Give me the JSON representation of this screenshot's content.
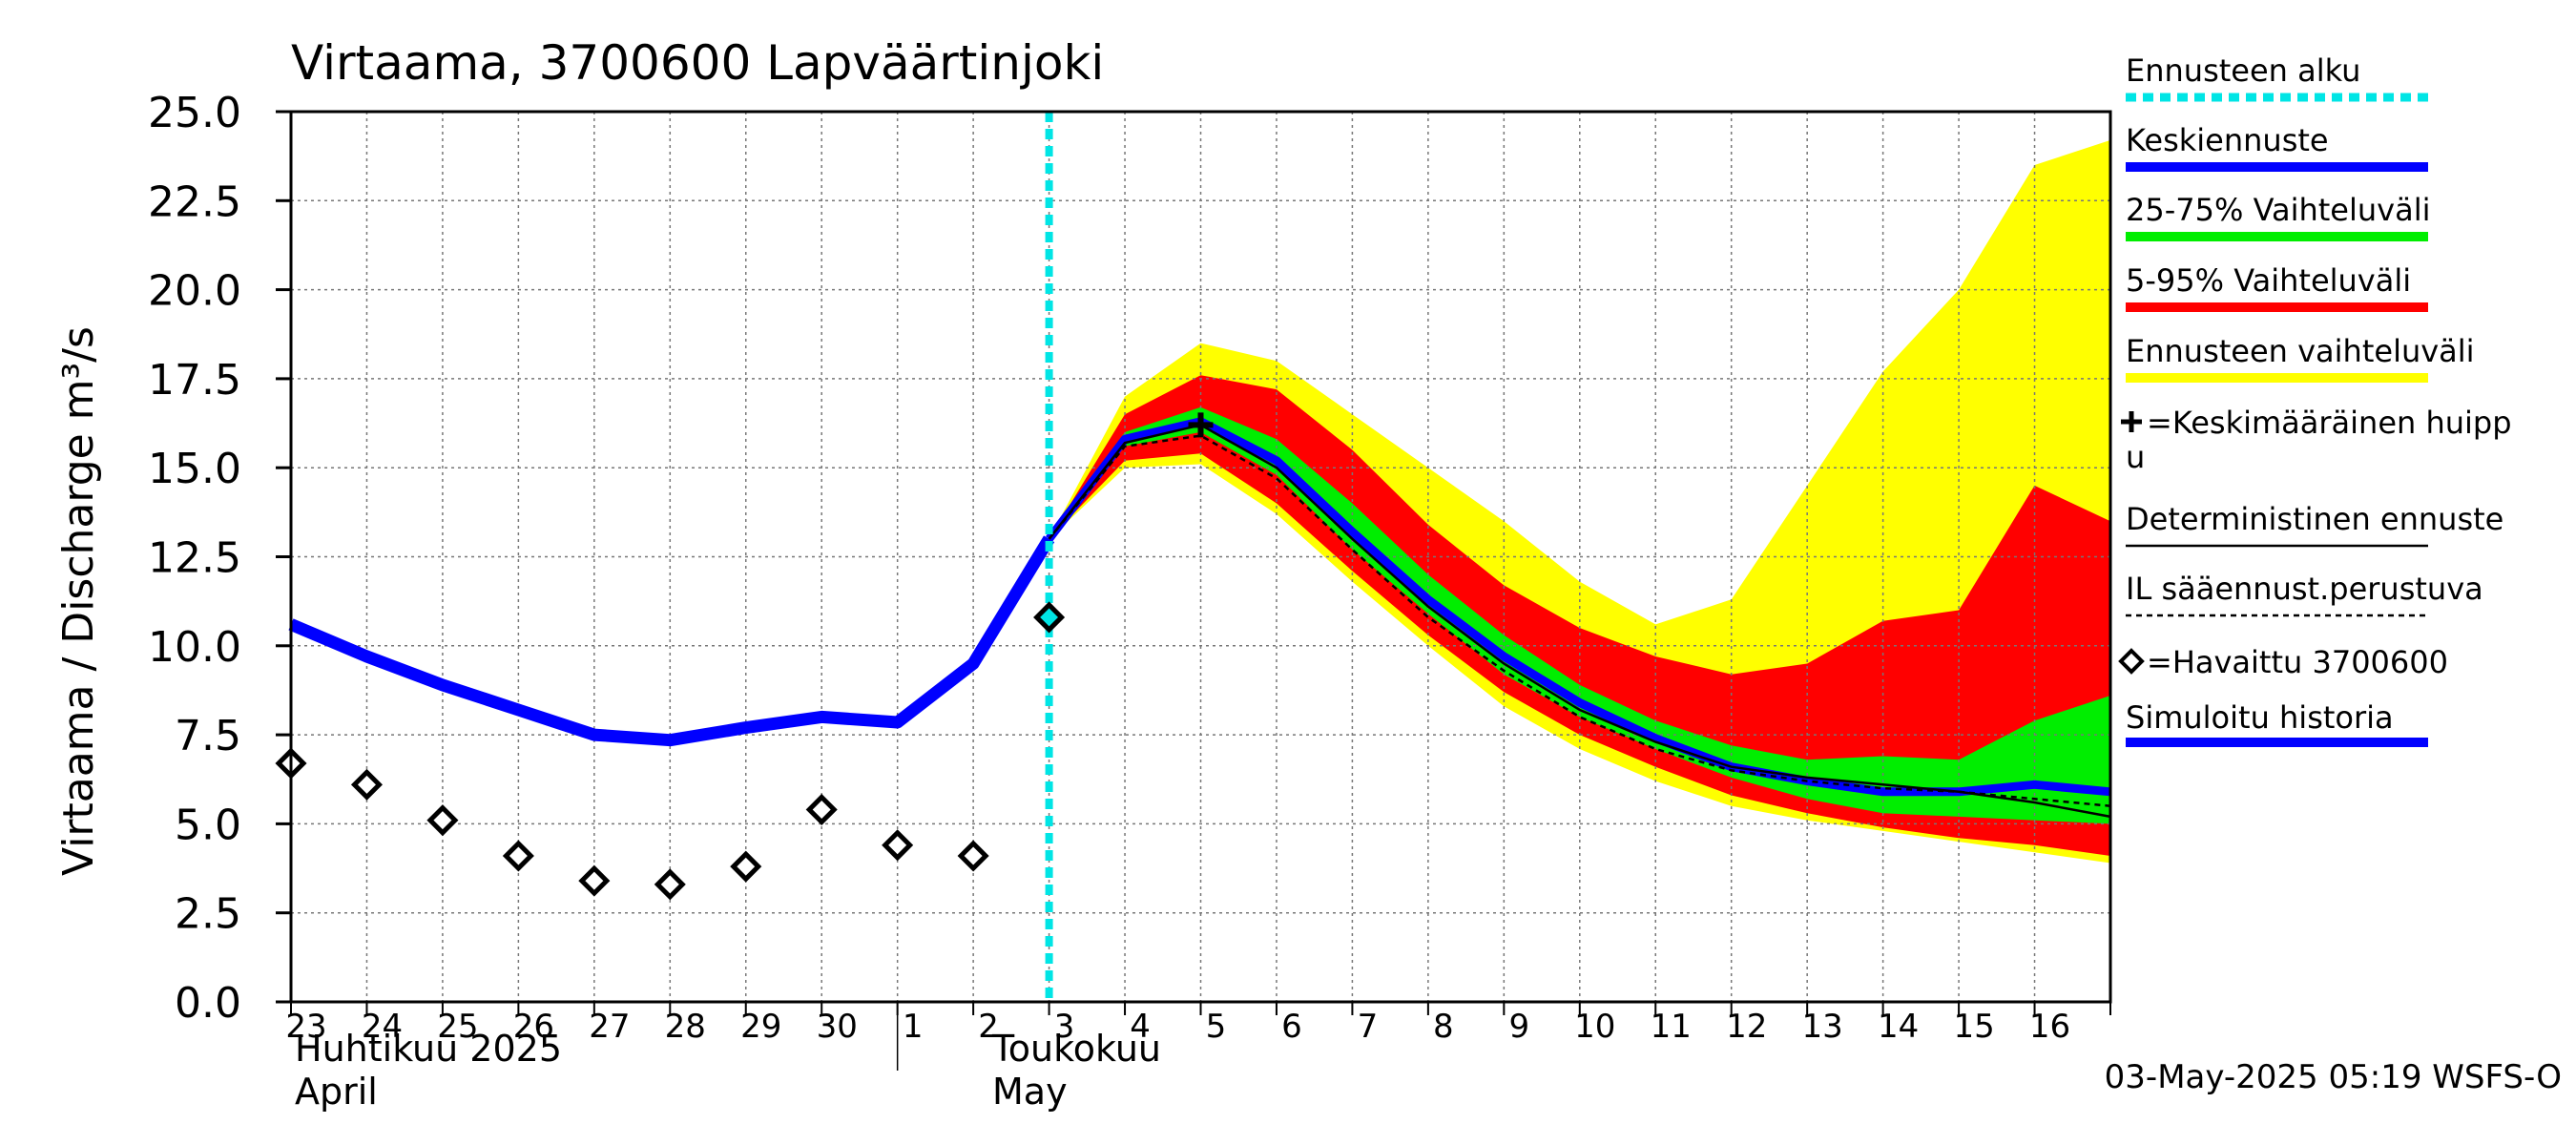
{
  "chart_data": {
    "type": "area",
    "title": "Virtaama, 3700600 Lapväärtinjoki",
    "ylabel": "Virtaama / Discharge   m³/s",
    "ylim": [
      0,
      25
    ],
    "yticks": [
      "0.0",
      "2.5",
      "5.0",
      "7.5",
      "10.0",
      "12.5",
      "15.0",
      "17.5",
      "20.0",
      "22.5",
      "25.0"
    ],
    "xlim": [
      0,
      24
    ],
    "day_labels": [
      "23",
      "24",
      "25",
      "26",
      "27",
      "28",
      "29",
      "30",
      "1",
      "2",
      "3",
      "4",
      "5",
      "6",
      "7",
      "8",
      "9",
      "10",
      "11",
      "12",
      "13",
      "14",
      "15",
      "16"
    ],
    "month_labels": [
      {
        "line1": "Huhtikuu  2025",
        "line2": "April",
        "day": 0
      },
      {
        "line1": "Toukokuu",
        "line2": "May",
        "day": 9.2
      }
    ],
    "month_separator_day": 8,
    "forecast_start_day": 10,
    "footer": "03-May-2025 05:19 WSFS-O",
    "legend": [
      {
        "label": "Ennusteen alku",
        "color": "#00e5e5",
        "style": "dotted-thick"
      },
      {
        "label": "Keskiennuste",
        "color": "#0000ff",
        "style": "thick"
      },
      {
        "label": "25-75% Vaihteluväli",
        "color": "#00ee00",
        "style": "thick"
      },
      {
        "label": "5-95% Vaihteluväli",
        "color": "#ff0000",
        "style": "thick"
      },
      {
        "label": "Ennusteen vaihteluväli",
        "color": "#ffff00",
        "style": "thick"
      },
      {
        "label": "=Keskimääräinen huippu",
        "color": "#000000",
        "style": "plus"
      },
      {
        "label": "Deterministinen ennuste",
        "color": "#000000",
        "style": "thin"
      },
      {
        "label": "IL sääennust.perustuva",
        "color": "#000000",
        "style": "dashed"
      },
      {
        "label": "=Havaittu 3700600",
        "color": "#000000",
        "style": "diamond"
      },
      {
        "label": "Simuloitu historia",
        "color": "#0000ff",
        "style": "thick"
      }
    ],
    "series": [
      {
        "name": "Simuloitu historia",
        "x": [
          0,
          1,
          2,
          3,
          4,
          5,
          6,
          7,
          8,
          9,
          10
        ],
        "values": [
          10.6,
          9.7,
          8.9,
          8.2,
          7.5,
          7.35,
          7.7,
          8.0,
          7.85,
          9.5,
          13.0
        ]
      },
      {
        "name": "Ennusteen vaihteluväli",
        "x": [
          10,
          11,
          12,
          13,
          14,
          15,
          16,
          17,
          18,
          19,
          20,
          21,
          22,
          23,
          24
        ],
        "upper": [
          13.0,
          17.0,
          18.5,
          18.0,
          16.5,
          15.0,
          13.5,
          11.8,
          10.6,
          11.3,
          14.5,
          17.7,
          20.0,
          23.5,
          24.2
        ],
        "lower": [
          13.0,
          15.0,
          15.1,
          13.7,
          11.8,
          10.0,
          8.3,
          7.1,
          6.2,
          5.5,
          5.1,
          4.8,
          4.5,
          4.2,
          3.9
        ]
      },
      {
        "name": "5-95% Vaihteluväli",
        "x": [
          10,
          11,
          12,
          13,
          14,
          15,
          16,
          17,
          18,
          19,
          20,
          21,
          22,
          23,
          24
        ],
        "upper": [
          13.0,
          16.5,
          17.6,
          17.2,
          15.5,
          13.4,
          11.7,
          10.5,
          9.7,
          9.2,
          9.5,
          10.7,
          11.0,
          14.5,
          13.5
        ],
        "lower": [
          13.0,
          15.2,
          15.4,
          14.0,
          12.1,
          10.3,
          8.7,
          7.5,
          6.6,
          5.8,
          5.3,
          4.9,
          4.6,
          4.4,
          4.1
        ]
      },
      {
        "name": "25-75% Vaihteluväli",
        "x": [
          10,
          11,
          12,
          13,
          14,
          15,
          16,
          17,
          18,
          19,
          20,
          21,
          22,
          23,
          24
        ],
        "upper": [
          13.0,
          16.0,
          16.7,
          15.8,
          14.0,
          12.0,
          10.3,
          8.9,
          7.9,
          7.2,
          6.8,
          6.9,
          6.8,
          7.9,
          8.6
        ],
        "lower": [
          13.0,
          15.6,
          16.0,
          14.8,
          12.7,
          10.9,
          9.2,
          8.0,
          7.1,
          6.3,
          5.7,
          5.3,
          5.2,
          5.1,
          5.0
        ]
      },
      {
        "name": "Keskiennuste",
        "x": [
          10,
          11,
          12,
          13,
          14,
          15,
          16,
          17,
          18,
          19,
          20,
          21,
          22,
          23,
          24
        ],
        "values": [
          13.0,
          15.8,
          16.3,
          15.2,
          13.2,
          11.3,
          9.7,
          8.4,
          7.4,
          6.6,
          6.2,
          5.9,
          5.9,
          6.1,
          5.9
        ]
      },
      {
        "name": "Deterministinen ennuste",
        "x": [
          10,
          11,
          12,
          13,
          14,
          15,
          16,
          17,
          18,
          19,
          20,
          21,
          22,
          23,
          24
        ],
        "values": [
          13.0,
          15.7,
          16.2,
          15.0,
          13.0,
          11.1,
          9.5,
          8.2,
          7.3,
          6.6,
          6.3,
          6.1,
          5.9,
          5.6,
          5.2
        ]
      },
      {
        "name": "IL sääennust.perustuva",
        "x": [
          10,
          11,
          12,
          13,
          14,
          15,
          16,
          17,
          18,
          19,
          20,
          21,
          22,
          23,
          24
        ],
        "values": [
          13.0,
          15.6,
          15.9,
          14.7,
          12.7,
          10.8,
          9.3,
          8.0,
          7.1,
          6.5,
          6.2,
          6.0,
          5.9,
          5.7,
          5.5
        ]
      },
      {
        "name": "=Havaittu 3700600",
        "x": [
          0,
          1,
          2,
          3,
          4,
          5,
          6,
          7,
          8,
          9,
          10
        ],
        "values": [
          6.7,
          6.1,
          5.1,
          4.1,
          3.4,
          3.3,
          3.8,
          5.4,
          4.4,
          4.1,
          10.8
        ]
      },
      {
        "name": "=Keskimääräinen huippu",
        "x": [
          12
        ],
        "values": [
          16.2
        ]
      }
    ]
  }
}
